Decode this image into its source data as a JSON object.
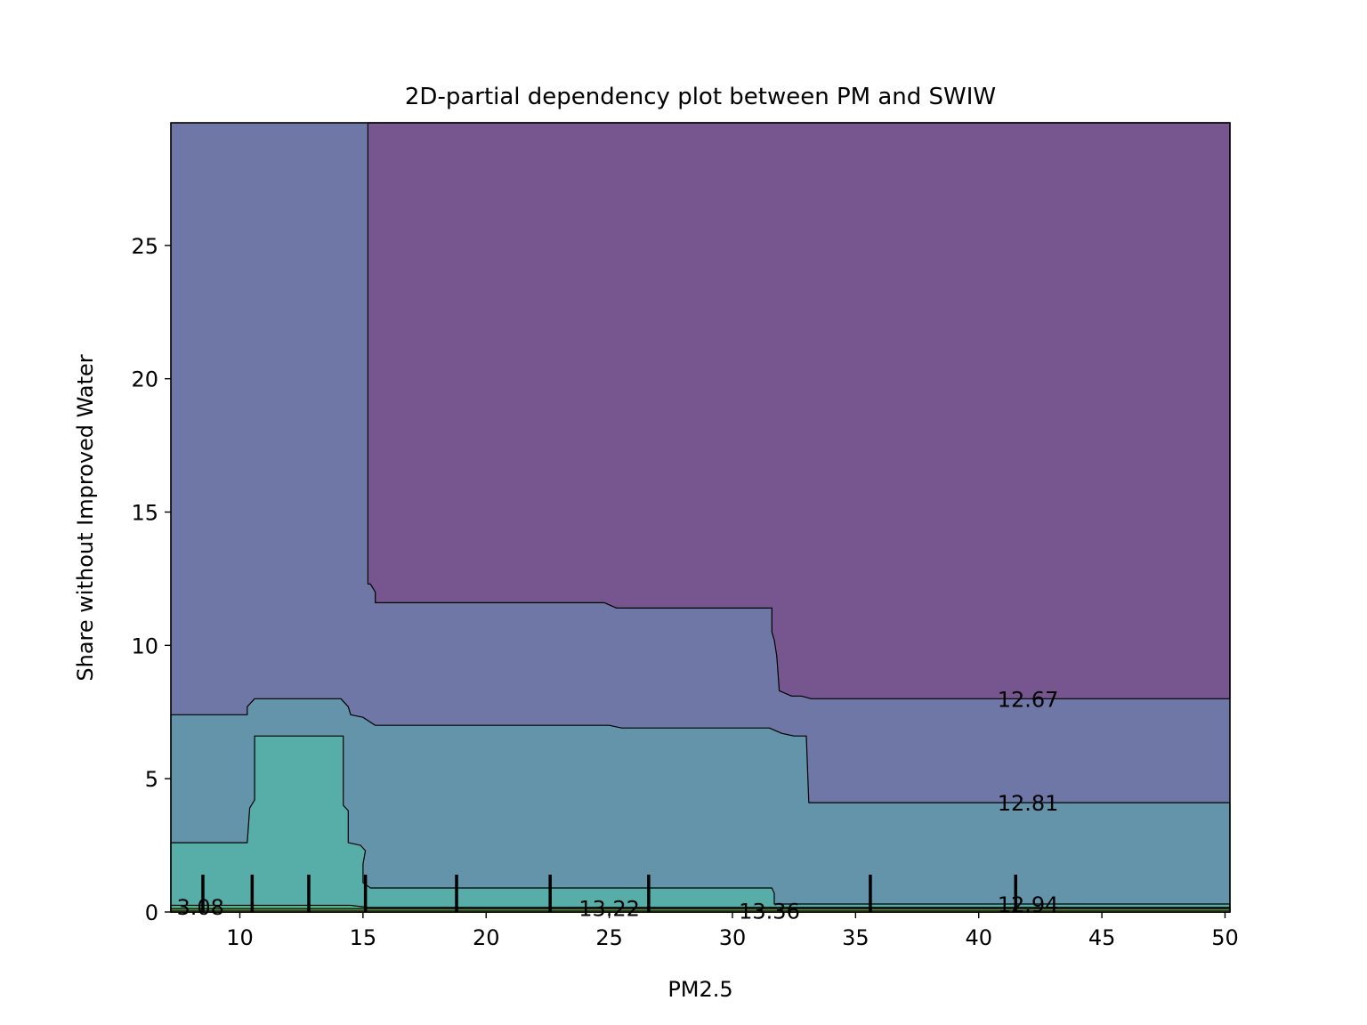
{
  "chart_data": {
    "type": "contour",
    "title": "2D-partial dependency plot between PM and SWIW",
    "xlabel": "PM2.5",
    "ylabel": "Share without Improved Water",
    "xlim": [
      7.2,
      50.2
    ],
    "ylim": [
      0,
      29.6
    ],
    "xticks": [
      10,
      15,
      20,
      25,
      30,
      35,
      40,
      45,
      50
    ],
    "yticks": [
      0,
      5,
      10,
      15,
      20,
      25
    ],
    "grid": false,
    "legend": "none",
    "level_colors": {
      "below_12.67": "#77558f",
      "12.67_to_12.81": "#6e77a5",
      "12.81_to_12.94": "#6394aa",
      "12.94_to_13.08": "#57ada7",
      "13.08_to_13.22": "#5bbf97",
      "13.22_to_13.36": "#7dcf74",
      "above_13.36": "#c2df50"
    },
    "regions": [
      {
        "level": "below_12.67",
        "color": "#77558f",
        "points": [
          [
            15.2,
            29.6
          ],
          [
            50.2,
            29.6
          ],
          [
            50.2,
            8.0
          ],
          [
            33.2,
            8.0
          ],
          [
            32.8,
            8.1
          ],
          [
            32.4,
            8.1
          ],
          [
            31.9,
            8.3
          ],
          [
            31.8,
            9.6
          ],
          [
            31.7,
            10.2
          ],
          [
            31.6,
            10.5
          ],
          [
            31.6,
            11.4
          ],
          [
            25.3,
            11.4
          ],
          [
            24.8,
            11.6
          ],
          [
            15.5,
            11.6
          ],
          [
            15.5,
            12.0
          ],
          [
            15.3,
            12.3
          ],
          [
            15.2,
            12.3
          ]
        ]
      },
      {
        "level": "12.81_to_12.94",
        "color": "#6394aa",
        "points": [
          [
            7.2,
            7.4
          ],
          [
            10.3,
            7.4
          ],
          [
            10.3,
            7.7
          ],
          [
            10.6,
            8.0
          ],
          [
            14.1,
            8.0
          ],
          [
            14.4,
            7.7
          ],
          [
            14.5,
            7.4
          ],
          [
            15.0,
            7.3
          ],
          [
            15.5,
            7.0
          ],
          [
            25.0,
            7.0
          ],
          [
            25.5,
            6.9
          ],
          [
            31.5,
            6.9
          ],
          [
            32.0,
            6.7
          ],
          [
            32.5,
            6.6
          ],
          [
            33.0,
            6.6
          ],
          [
            33.1,
            4.1
          ],
          [
            50.2,
            4.1
          ],
          [
            50.2,
            0
          ],
          [
            7.2,
            0
          ]
        ]
      },
      {
        "level": "12.94_to_13.08",
        "color": "#57ada7",
        "points": [
          [
            7.2,
            2.6
          ],
          [
            10.3,
            2.6
          ],
          [
            10.4,
            3.9
          ],
          [
            10.6,
            4.2
          ],
          [
            10.6,
            6.6
          ],
          [
            14.2,
            6.6
          ],
          [
            14.2,
            4.0
          ],
          [
            14.4,
            3.8
          ],
          [
            14.4,
            2.6
          ],
          [
            14.9,
            2.5
          ],
          [
            15.1,
            2.3
          ],
          [
            15.0,
            1.8
          ],
          [
            15.0,
            1.1
          ],
          [
            15.3,
            0.9
          ],
          [
            31.6,
            0.9
          ],
          [
            31.7,
            0.7
          ],
          [
            31.7,
            0.3
          ],
          [
            50.2,
            0.3
          ],
          [
            50.2,
            0
          ],
          [
            7.2,
            0
          ]
        ]
      },
      {
        "level": "13.08_to_13.22",
        "color": "#5bbf97",
        "points": [
          [
            7.2,
            0.25
          ],
          [
            14.5,
            0.25
          ],
          [
            15.2,
            0.17
          ],
          [
            50.2,
            0.17
          ],
          [
            50.2,
            0
          ],
          [
            7.2,
            0
          ]
        ]
      },
      {
        "level": "13.22_to_13.36",
        "color": "#7dcf74",
        "points": [
          [
            7.2,
            0.13
          ],
          [
            50.2,
            0.13
          ],
          [
            50.2,
            0
          ],
          [
            7.2,
            0
          ]
        ]
      },
      {
        "level": "above_13.36",
        "color": "#c2df50",
        "points": [
          [
            7.2,
            0.06
          ],
          [
            50.2,
            0.06
          ],
          [
            50.2,
            0
          ],
          [
            7.2,
            0
          ]
        ]
      }
    ],
    "contour_labels": [
      {
        "text": "12.67",
        "x": 42.0,
        "y": 8.0
      },
      {
        "text": "12.81",
        "x": 42.0,
        "y": 4.1
      },
      {
        "text": "12.94",
        "x": 42.0,
        "y": 0.3
      },
      {
        "text": "13.22",
        "x": 25.0,
        "y": 0.15
      },
      {
        "text": "13.36",
        "x": 31.5,
        "y": 0.05
      },
      {
        "text": "3.08",
        "x": 8.4,
        "y": 0.2
      }
    ],
    "rug_x": [
      8.5,
      10.5,
      12.8,
      15.1,
      18.8,
      22.6,
      26.6,
      35.6,
      41.5
    ]
  }
}
